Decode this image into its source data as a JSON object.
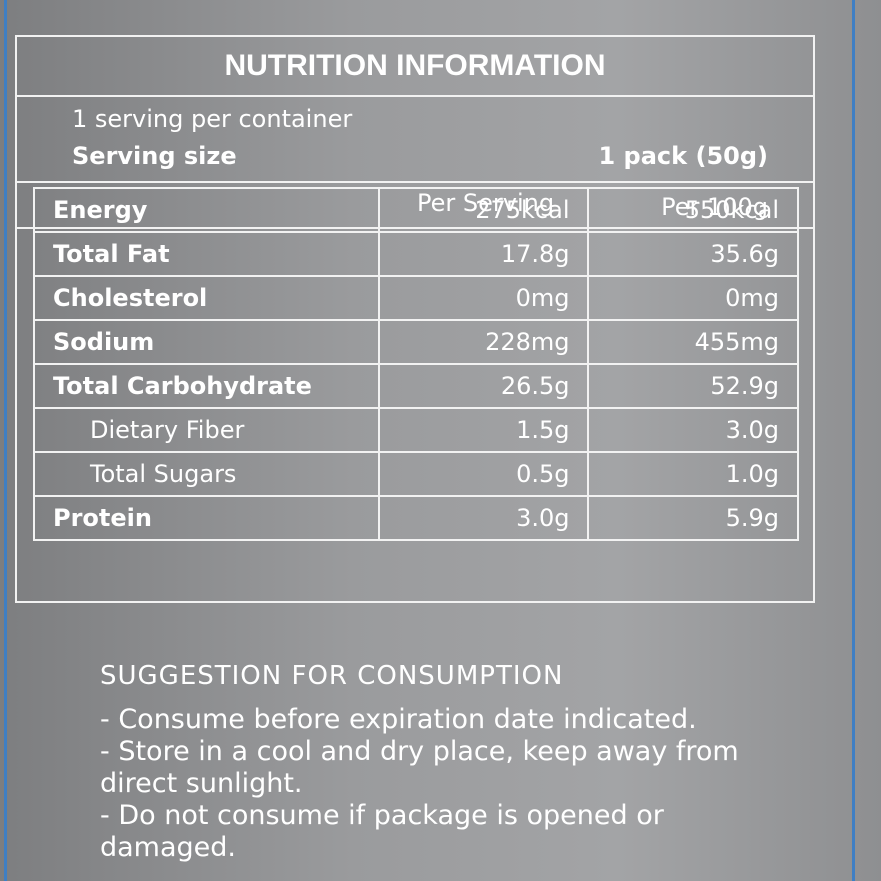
{
  "header": {
    "title": "NUTRITION INFORMATION"
  },
  "serving": {
    "per_container": "1 serving per container",
    "size_label": "Serving size",
    "size_value": "1 pack (50g)"
  },
  "table": {
    "columns": [
      "Per Serving",
      "Per 100g"
    ],
    "rows": [
      [
        "Energy",
        "275kcal",
        "550kcal"
      ],
      [
        "Total Fat",
        "17.8g",
        "35.6g"
      ],
      [
        "Cholesterol",
        "0mg",
        "0mg"
      ],
      [
        "Sodium",
        "228mg",
        "455mg"
      ],
      [
        "Total Carbohydrate",
        "26.5g",
        "52.9g"
      ],
      [
        "Dietary Fiber",
        "1.5g",
        "3.0g"
      ],
      [
        "Total Sugars",
        "0.5g",
        "1.0g"
      ],
      [
        "Protein",
        "3.0g",
        "5.9g"
      ]
    ]
  },
  "suggestion": {
    "title": "SUGGESTION FOR CONSUMPTION",
    "lines": [
      "- Consume before expiration date indicated.",
      "- Store in a cool and dry place, keep away from direct sunlight.",
      "- Do not consume if package is opened or damaged."
    ]
  }
}
